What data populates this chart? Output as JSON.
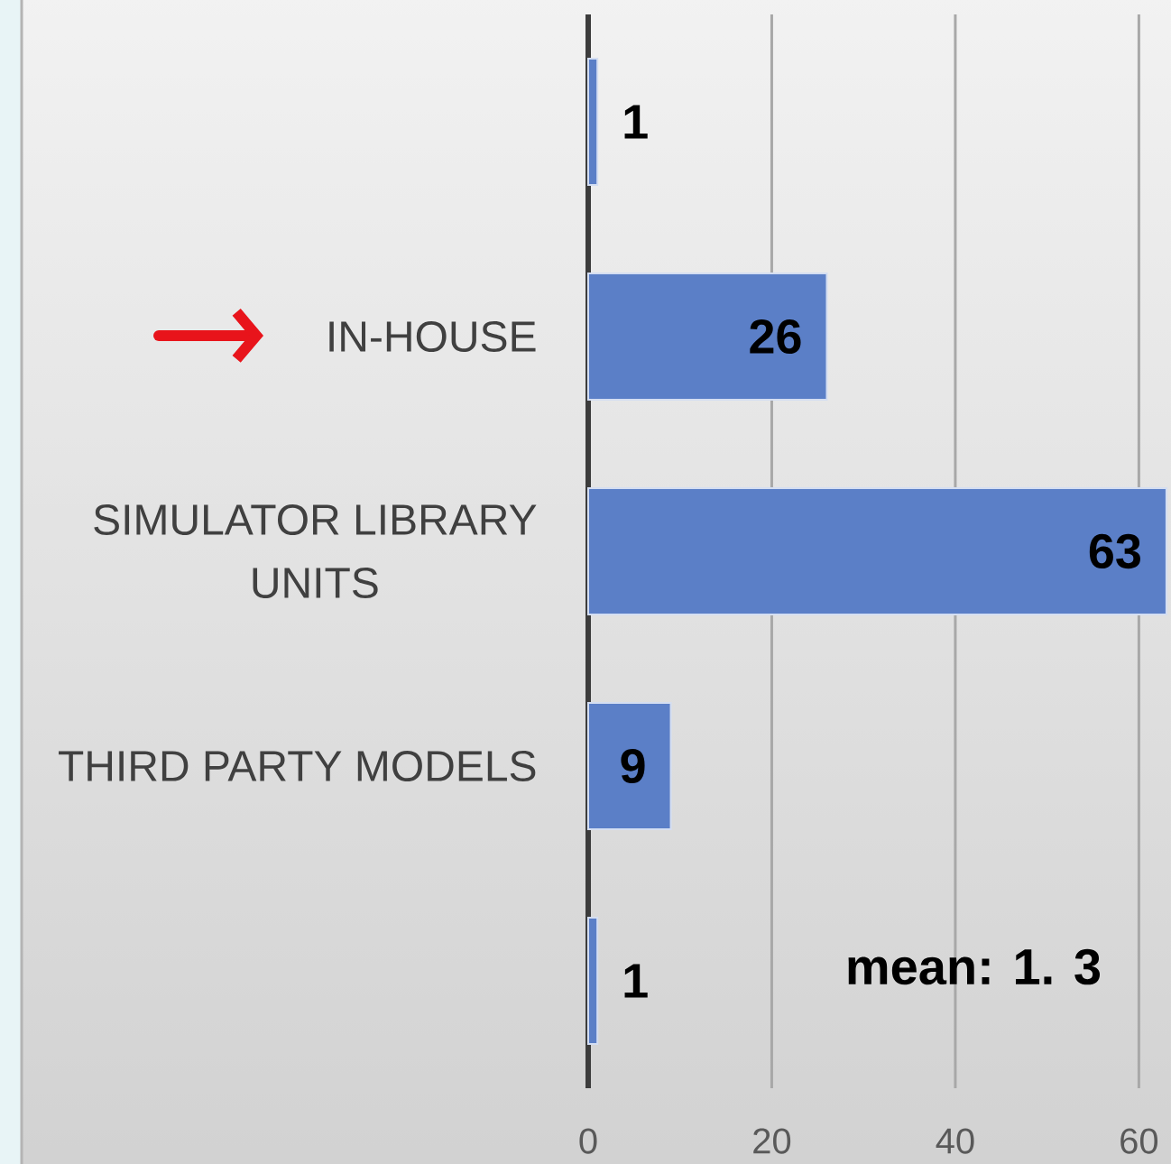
{
  "chart_data": {
    "type": "bar",
    "orientation": "horizontal",
    "categories": [
      null,
      "IN-HOUSE",
      "SIMULATOR LIBRARY UNITS",
      "THIRD PARTY MODELS",
      null
    ],
    "values": [
      1,
      26,
      63,
      9,
      1
    ],
    "color": "#5b7fc7",
    "xlim": [
      0,
      63.5
    ],
    "xticks": [
      0,
      20,
      40,
      60
    ],
    "grid": "x",
    "data_labels": true,
    "annotations": [
      "mean: 1. 3"
    ]
  }
}
